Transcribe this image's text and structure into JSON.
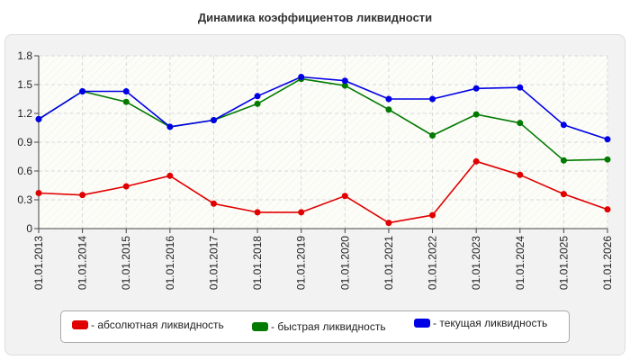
{
  "chart_data": {
    "type": "line",
    "title": "Динамика коэффициентов ликвидности",
    "categories": [
      "01.01.2013",
      "01.01.2014",
      "01.01.2015",
      "01.01.2016",
      "01.01.2017",
      "01.01.2018",
      "01.01.2019",
      "01.01.2020",
      "01.01.2021",
      "01.01.2022",
      "01.01.2023",
      "01.01.2024",
      "01.01.2025",
      "01.01.2026"
    ],
    "ylim": [
      0,
      1.8
    ],
    "yticks": [
      "0",
      "0.3",
      "0.6",
      "0.9",
      "1.2",
      "1.5",
      "1.8"
    ],
    "grid": true,
    "legend_position": "bottom",
    "series": [
      {
        "name": "- абсолютная ликвидность",
        "color": "#e00000",
        "values": [
          0.37,
          0.35,
          0.44,
          0.55,
          0.26,
          0.17,
          0.17,
          0.34,
          0.06,
          0.14,
          0.7,
          0.56,
          0.36,
          0.2
        ]
      },
      {
        "name": "- быстрая ликвидность",
        "color": "#007a00",
        "values": [
          1.14,
          1.43,
          1.32,
          1.06,
          1.13,
          1.3,
          1.56,
          1.49,
          1.24,
          0.97,
          1.19,
          1.1,
          0.71,
          0.72
        ]
      },
      {
        "name": "- текущая ликвидность",
        "color": "#0000e6",
        "values": [
          1.14,
          1.43,
          1.43,
          1.06,
          1.13,
          1.38,
          1.58,
          1.54,
          1.35,
          1.35,
          1.46,
          1.47,
          1.08,
          0.93
        ]
      }
    ]
  }
}
